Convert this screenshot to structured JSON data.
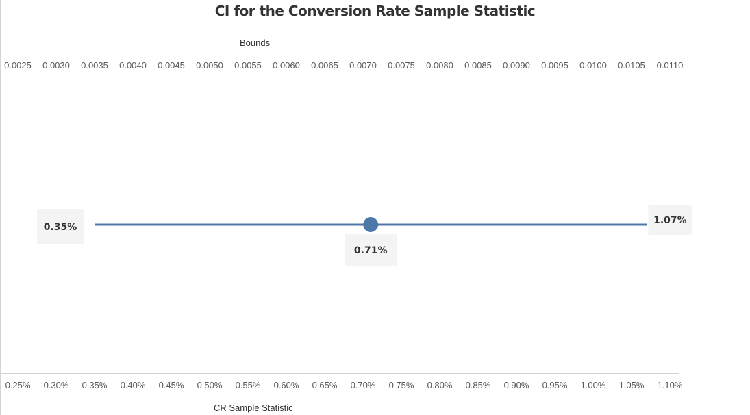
{
  "chart_data": {
    "type": "scatter",
    "title": "CI for the Conversion Rate Sample Statistic",
    "x_top": {
      "label": "Bounds",
      "range": [
        0.0025,
        0.011
      ],
      "ticks": [
        "0.0025",
        "0.0030",
        "0.0035",
        "0.0040",
        "0.0045",
        "0.0050",
        "0.0055",
        "0.0060",
        "0.0065",
        "0.0070",
        "0.0075",
        "0.0080",
        "0.0085",
        "0.0090",
        "0.0095",
        "0.0100",
        "0.0105",
        "0.0110"
      ]
    },
    "x_bottom": {
      "label": "CR Sample Statistic",
      "range": [
        0.25,
        1.1
      ],
      "ticks": [
        "0.25%",
        "0.30%",
        "0.35%",
        "0.40%",
        "0.45%",
        "0.50%",
        "0.55%",
        "0.60%",
        "0.65%",
        "0.70%",
        "0.75%",
        "0.80%",
        "0.85%",
        "0.90%",
        "0.95%",
        "1.00%",
        "1.05%",
        "1.10%"
      ]
    },
    "interval": {
      "lower": 0.35,
      "point": 0.71,
      "upper": 1.07,
      "lower_label": "0.35%",
      "point_label": "0.71%",
      "upper_label": "1.07%"
    },
    "grid": false,
    "colors": {
      "interval": "#4e79a7",
      "label_bg": "#f4f4f4"
    }
  }
}
